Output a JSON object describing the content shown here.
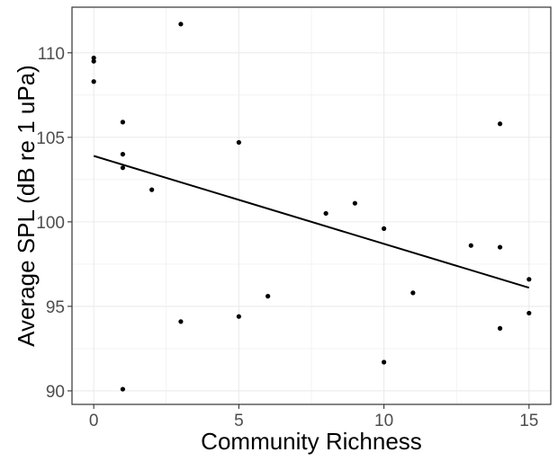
{
  "chart_data": {
    "type": "scatter",
    "title": "",
    "xlabel": "Community Richness",
    "ylabel": "Average SPL (dB re 1 uPa)",
    "xlim": [
      -0.75,
      15.75
    ],
    "ylim": [
      89.2,
      112.7
    ],
    "x_ticks": [
      0,
      5,
      10,
      15
    ],
    "y_ticks": [
      90,
      95,
      100,
      105,
      110
    ],
    "x_tick_labels": [
      "0",
      "5",
      "10",
      "15"
    ],
    "y_tick_labels": [
      "90",
      "95",
      "100",
      "105",
      "110"
    ],
    "grid": true,
    "points": [
      {
        "x": 0,
        "y": 109.7
      },
      {
        "x": 0,
        "y": 109.5
      },
      {
        "x": 0,
        "y": 108.3
      },
      {
        "x": 1,
        "y": 105.9
      },
      {
        "x": 1,
        "y": 104.0
      },
      {
        "x": 1,
        "y": 103.2
      },
      {
        "x": 1,
        "y": 90.1
      },
      {
        "x": 2,
        "y": 101.9
      },
      {
        "x": 3,
        "y": 111.7
      },
      {
        "x": 3,
        "y": 94.1
      },
      {
        "x": 5,
        "y": 104.7
      },
      {
        "x": 5,
        "y": 94.4
      },
      {
        "x": 6,
        "y": 95.6
      },
      {
        "x": 8,
        "y": 100.5
      },
      {
        "x": 9,
        "y": 101.1
      },
      {
        "x": 10,
        "y": 99.6
      },
      {
        "x": 10,
        "y": 91.7
      },
      {
        "x": 11,
        "y": 95.8
      },
      {
        "x": 13,
        "y": 98.6
      },
      {
        "x": 14,
        "y": 105.8
      },
      {
        "x": 14,
        "y": 98.5
      },
      {
        "x": 14,
        "y": 93.7
      },
      {
        "x": 15,
        "y": 96.6
      },
      {
        "x": 15,
        "y": 94.6
      }
    ],
    "fit_line": {
      "x": [
        0,
        15
      ],
      "y": [
        103.9,
        96.1
      ]
    },
    "point_color": "#000000",
    "line_color": "#000000",
    "grid_color": "#ebebeb"
  }
}
